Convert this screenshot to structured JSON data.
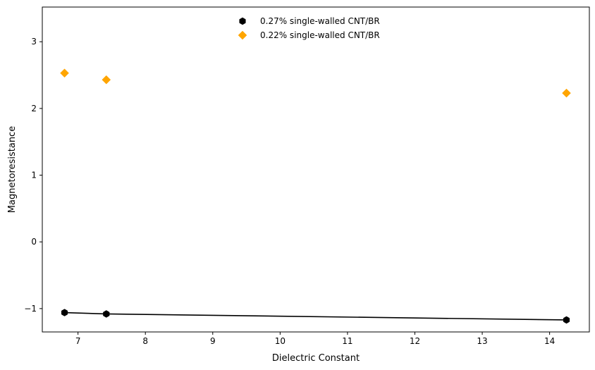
{
  "chart_data": {
    "type": "scatter",
    "title": "",
    "xlabel": "Dielectric Constant",
    "ylabel": "Magnetoresistance",
    "xlim": [
      6.47,
      14.59
    ],
    "ylim": [
      -1.35,
      3.52
    ],
    "xticks": [
      7,
      8,
      9,
      10,
      11,
      12,
      13,
      14
    ],
    "yticks": [
      -1,
      0,
      1,
      2,
      3
    ],
    "ytick_labels": [
      "−1",
      "0",
      "1",
      "2",
      "3"
    ],
    "grid": false,
    "legend_position": "top-center",
    "series": [
      {
        "name": "0.27% single-walled CNT/BR",
        "marker": "hexagon",
        "color": "#000000",
        "x": [
          6.8,
          7.42,
          14.25
        ],
        "y": [
          -1.06,
          -1.08,
          -1.17
        ],
        "trend_line": true
      },
      {
        "name": "0.22% single-walled CNT/BR",
        "marker": "diamond",
        "color": "#FFA500",
        "x": [
          6.8,
          7.42,
          14.25
        ],
        "y": [
          2.53,
          2.43,
          2.23
        ],
        "trend_line": false
      }
    ]
  }
}
